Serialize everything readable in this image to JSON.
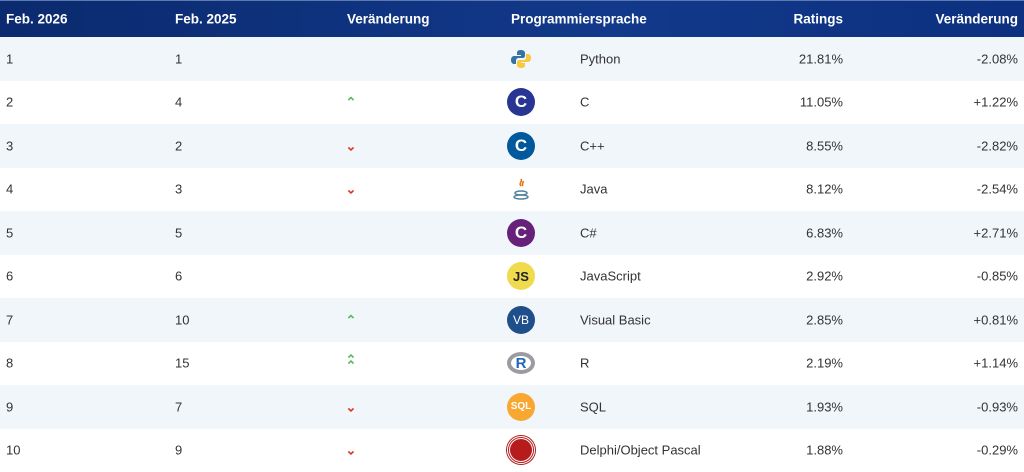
{
  "header": {
    "col1": "Feb. 2026",
    "col2": "Feb. 2025",
    "col3": "Veränderung",
    "col4": "Programmiersprache",
    "col5": "Ratings",
    "col6": "Veränderung"
  },
  "rows": [
    {
      "rank": "1",
      "prev": "1",
      "trend": "none",
      "icon": "python-logo",
      "lang": "Python",
      "rating": "21.81%",
      "change": "-2.08%"
    },
    {
      "rank": "2",
      "prev": "4",
      "trend": "up",
      "icon": "c-logo",
      "lang": "C",
      "rating": "11.05%",
      "change": "+1.22%"
    },
    {
      "rank": "3",
      "prev": "2",
      "trend": "down",
      "icon": "cpp-logo",
      "lang": "C++",
      "rating": "8.55%",
      "change": "-2.82%"
    },
    {
      "rank": "4",
      "prev": "3",
      "trend": "down",
      "icon": "java-logo",
      "lang": "Java",
      "rating": "8.12%",
      "change": "-2.54%"
    },
    {
      "rank": "5",
      "prev": "5",
      "trend": "none",
      "icon": "csharp-logo",
      "lang": "C#",
      "rating": "6.83%",
      "change": "+2.71%"
    },
    {
      "rank": "6",
      "prev": "6",
      "trend": "none",
      "icon": "javascript-logo",
      "lang": "JavaScript",
      "rating": "2.92%",
      "change": "-0.85%"
    },
    {
      "rank": "7",
      "prev": "10",
      "trend": "up",
      "icon": "visual-basic-logo",
      "lang": "Visual Basic",
      "rating": "2.85%",
      "change": "+0.81%"
    },
    {
      "rank": "8",
      "prev": "15",
      "trend": "double-up",
      "icon": "r-logo",
      "lang": "R",
      "rating": "2.19%",
      "change": "+1.14%"
    },
    {
      "rank": "9",
      "prev": "7",
      "trend": "down",
      "icon": "sql-logo",
      "lang": "SQL",
      "rating": "1.93%",
      "change": "-0.93%"
    },
    {
      "rank": "10",
      "prev": "9",
      "trend": "down",
      "icon": "delphi-logo",
      "lang": "Delphi/Object Pascal",
      "rating": "1.88%",
      "change": "-0.29%"
    }
  ],
  "icon_text": {
    "js": "JS",
    "vb": "VB",
    "r": "R",
    "sql": "SQL",
    "c": "C",
    "cpp": "C",
    "cs": "C"
  },
  "colors": {
    "header": "#0b2a6f",
    "up": "#5cb85c",
    "down": "#e0332a",
    "stripe": "#f1f6fb"
  }
}
